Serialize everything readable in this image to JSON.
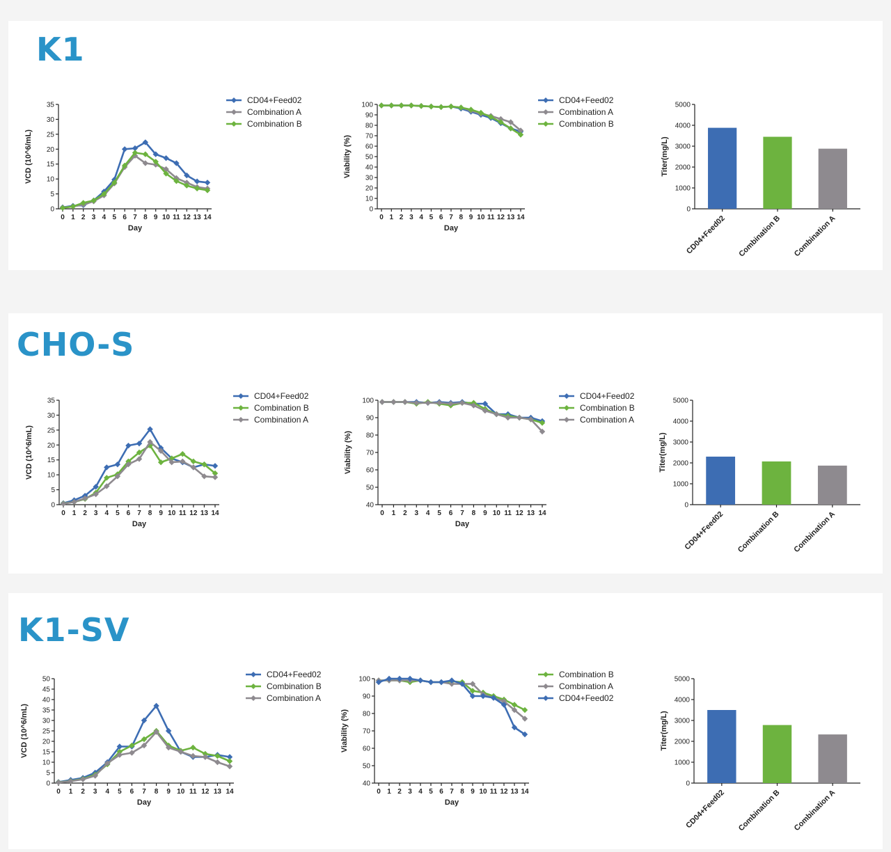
{
  "colors": {
    "blue": "#3d6db3",
    "green": "#6db33f",
    "gray": "#8e8a8f",
    "title": "#2a93c8"
  },
  "sections": [
    {
      "title": "K1"
    },
    {
      "title": "CHO-S"
    },
    {
      "title": "K1-SV"
    }
  ],
  "chart_data": [
    {
      "id": "k1-vcd",
      "type": "line",
      "title": "",
      "xlabel": "Day",
      "ylabel": "VCD (10^6/mL)",
      "x": [
        0,
        1,
        2,
        3,
        4,
        5,
        6,
        7,
        8,
        9,
        10,
        11,
        12,
        13,
        14
      ],
      "ylim": [
        0,
        35
      ],
      "yticks": [
        0,
        5,
        10,
        15,
        20,
        25,
        30,
        35
      ],
      "legend": [
        "CD04+Feed02",
        "Combination A",
        "Combination B"
      ],
      "series": [
        {
          "name": "CD04+Feed02",
          "color": "blue",
          "values": [
            0.5,
            1,
            1.2,
            2.8,
            5.8,
            9.8,
            20,
            20.3,
            22.3,
            18.3,
            17,
            15.3,
            11.2,
            9.2,
            8.8
          ]
        },
        {
          "name": "Combination A",
          "color": "gray",
          "values": [
            0.4,
            0.8,
            1.4,
            2.5,
            4.5,
            8.5,
            14,
            17.8,
            15.3,
            14.8,
            13.3,
            10.3,
            8.8,
            7.3,
            6.8
          ]
        },
        {
          "name": "Combination B",
          "color": "green",
          "values": [
            0.3,
            0.8,
            2,
            2.8,
            5,
            8.8,
            14.5,
            18.8,
            18.3,
            15.8,
            11.8,
            9.3,
            7.8,
            6.8,
            6.2
          ]
        }
      ]
    },
    {
      "id": "k1-via",
      "type": "line",
      "title": "",
      "xlabel": "Day",
      "ylabel": "Viability (%)",
      "x": [
        0,
        1,
        2,
        3,
        4,
        5,
        6,
        7,
        8,
        9,
        10,
        11,
        12,
        13,
        14
      ],
      "ylim": [
        0,
        100
      ],
      "yticks": [
        0,
        10,
        20,
        30,
        40,
        50,
        60,
        70,
        80,
        90,
        100
      ],
      "legend": [
        "CD04+Feed02",
        "Combination A",
        "Combination B"
      ],
      "series": [
        {
          "name": "CD04+Feed02",
          "color": "blue",
          "values": [
            99,
            99,
            99,
            99,
            98.5,
            98,
            97.5,
            98,
            96,
            93,
            90,
            87,
            82,
            77,
            74
          ]
        },
        {
          "name": "Combination A",
          "color": "gray",
          "values": [
            99,
            99,
            99,
            99,
            98.5,
            98,
            97.5,
            98,
            97,
            94,
            91,
            89,
            86,
            83,
            75
          ]
        },
        {
          "name": "Combination B",
          "color": "green",
          "values": [
            99,
            99,
            99,
            99,
            98.5,
            98,
            97.5,
            98,
            97,
            95,
            92,
            88,
            83,
            77,
            71
          ]
        }
      ]
    },
    {
      "id": "k1-titer",
      "type": "bar",
      "title": "",
      "xlabel": "",
      "ylabel": "Titer(mg/L)",
      "categories": [
        "CD04+Feed02",
        "Combination B",
        "Combination A"
      ],
      "values": [
        3880,
        3450,
        2880
      ],
      "bar_colors": [
        "blue",
        "green",
        "gray"
      ],
      "ylim": [
        0,
        5000
      ],
      "yticks": [
        0,
        1000,
        2000,
        3000,
        4000,
        5000
      ]
    },
    {
      "id": "chos-vcd",
      "type": "line",
      "title": "",
      "xlabel": "Day",
      "ylabel": "VCD (10^6/mL)",
      "x": [
        0,
        1,
        2,
        3,
        4,
        5,
        6,
        7,
        8,
        9,
        10,
        11,
        12,
        13,
        14
      ],
      "ylim": [
        0,
        35
      ],
      "yticks": [
        0,
        5,
        10,
        15,
        20,
        25,
        30,
        35
      ],
      "legend": [
        "CD04+Feed02",
        "Combination B",
        "Combination A"
      ],
      "series": [
        {
          "name": "CD04+Feed02",
          "color": "blue",
          "values": [
            0.5,
            1.5,
            3,
            6,
            12.5,
            13.5,
            19.8,
            20.5,
            25.3,
            19,
            15.5,
            14.2,
            12.5,
            13.5,
            13
          ]
        },
        {
          "name": "Combination B",
          "color": "green",
          "values": [
            0.4,
            0.9,
            1.9,
            4,
            9,
            10.2,
            14.5,
            17.5,
            19.8,
            14.2,
            15.5,
            17,
            14.5,
            13.5,
            10.5
          ]
        },
        {
          "name": "Combination A",
          "color": "gray",
          "values": [
            0.3,
            0.9,
            2.1,
            3.5,
            6.2,
            9.5,
            13.5,
            15.3,
            21,
            18,
            14.2,
            14.5,
            12.5,
            9.5,
            9.2
          ]
        }
      ]
    },
    {
      "id": "chos-via",
      "type": "line",
      "title": "",
      "xlabel": "Day",
      "ylabel": "Viability (%)",
      "x": [
        0,
        1,
        2,
        3,
        4,
        5,
        6,
        7,
        8,
        9,
        10,
        11,
        12,
        13,
        14
      ],
      "ylim": [
        40,
        100
      ],
      "yticks": [
        40,
        50,
        60,
        70,
        80,
        90,
        100
      ],
      "legend": [
        "CD04+Feed02",
        "Combination B",
        "Combination A"
      ],
      "series": [
        {
          "name": "CD04+Feed02",
          "color": "blue",
          "values": [
            99,
            99,
            99,
            99,
            98.5,
            99,
            98.5,
            99,
            98,
            98,
            92,
            92,
            90,
            90,
            88
          ]
        },
        {
          "name": "Combination B",
          "color": "green",
          "values": [
            99,
            99,
            99,
            98,
            99,
            98,
            97,
            98.5,
            98.5,
            95,
            92,
            91,
            90,
            89,
            87
          ]
        },
        {
          "name": "Combination A",
          "color": "gray",
          "values": [
            99,
            99,
            99,
            98.5,
            98.5,
            98.5,
            98,
            98.5,
            97,
            94,
            92,
            90,
            90,
            89,
            82
          ]
        }
      ]
    },
    {
      "id": "chos-titer",
      "type": "bar",
      "title": "",
      "xlabel": "",
      "ylabel": "Titer(mg/L)",
      "categories": [
        "CD04+Feed02",
        "Combination B",
        "Combination A"
      ],
      "values": [
        2300,
        2070,
        1870
      ],
      "bar_colors": [
        "blue",
        "green",
        "gray"
      ],
      "ylim": [
        0,
        5000
      ],
      "yticks": [
        0,
        1000,
        2000,
        3000,
        4000,
        5000
      ]
    },
    {
      "id": "k1sv-vcd",
      "type": "line",
      "title": "",
      "xlabel": "Day",
      "ylabel": "VCD (10^6/mL)",
      "x": [
        0,
        1,
        2,
        3,
        4,
        5,
        6,
        7,
        8,
        9,
        10,
        11,
        12,
        13,
        14
      ],
      "ylim": [
        0,
        50
      ],
      "yticks": [
        0,
        5,
        10,
        15,
        20,
        25,
        30,
        35,
        40,
        45,
        50
      ],
      "legend": [
        "CD04+Feed02",
        "Combination B",
        "Combination A"
      ],
      "series": [
        {
          "name": "CD04+Feed02",
          "color": "blue",
          "values": [
            0.5,
            1.5,
            2.5,
            5,
            10,
            17.5,
            17.5,
            30,
            37,
            25,
            15,
            12.5,
            12.5,
            13.5,
            12.5
          ]
        },
        {
          "name": "Combination B",
          "color": "green",
          "values": [
            0.4,
            1,
            2,
            4,
            9,
            15,
            18,
            21,
            25,
            18,
            15.5,
            17,
            14,
            13,
            10.5
          ]
        },
        {
          "name": "Combination A",
          "color": "gray",
          "values": [
            0.3,
            0.9,
            1.8,
            3.5,
            9.5,
            13.5,
            14.5,
            18,
            24.5,
            17,
            15,
            13,
            12.5,
            10,
            8
          ]
        }
      ]
    },
    {
      "id": "k1sv-via",
      "type": "line",
      "title": "",
      "xlabel": "Day",
      "ylabel": "Viability (%)",
      "x": [
        0,
        1,
        2,
        3,
        4,
        5,
        6,
        7,
        8,
        9,
        10,
        11,
        12,
        13,
        14
      ],
      "ylim": [
        40,
        100
      ],
      "yticks": [
        40,
        50,
        60,
        70,
        80,
        90,
        100
      ],
      "legend": [
        "Combination B",
        "Combination A",
        "CD04+Feed02"
      ],
      "series": [
        {
          "name": "Combination B",
          "color": "green",
          "values": [
            99,
            99,
            99,
            98,
            99,
            98,
            98,
            98.5,
            98,
            93,
            92,
            90,
            88,
            85,
            82
          ]
        },
        {
          "name": "Combination A",
          "color": "gray",
          "values": [
            99,
            99,
            99,
            99,
            99,
            98,
            98,
            97,
            97,
            97,
            91,
            89,
            87,
            82,
            77
          ]
        },
        {
          "name": "CD04+Feed02",
          "color": "blue",
          "values": [
            98,
            100,
            100,
            100,
            99,
            98,
            98,
            99,
            97,
            90,
            90,
            89,
            85,
            72,
            68
          ]
        }
      ]
    },
    {
      "id": "k1sv-titer",
      "type": "bar",
      "title": "",
      "xlabel": "",
      "ylabel": "Titer(mg/L)",
      "categories": [
        "CD04+Feed02",
        "Combination B",
        "Combination A"
      ],
      "values": [
        3500,
        2780,
        2330
      ],
      "bar_colors": [
        "blue",
        "green",
        "gray"
      ],
      "ylim": [
        0,
        5000
      ],
      "yticks": [
        0,
        1000,
        2000,
        3000,
        4000,
        5000
      ]
    }
  ]
}
